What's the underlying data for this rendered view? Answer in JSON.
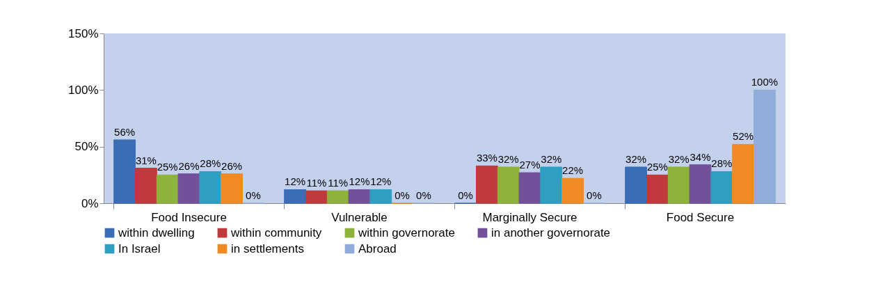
{
  "chart_data": {
    "type": "bar",
    "categories": [
      "Food Insecure",
      "Vulnerable",
      "Marginally Secure",
      "Food Secure"
    ],
    "series": [
      {
        "name": "within dwelling",
        "color": "#3a6db5",
        "values": [
          56,
          12,
          0,
          32
        ],
        "value_labels": [
          "56%",
          "12%",
          "0%",
          "32%"
        ]
      },
      {
        "name": "within community",
        "color": "#c0393b",
        "values": [
          31,
          11,
          33,
          25
        ],
        "value_labels": [
          "31%",
          "11%",
          "33%",
          "25%"
        ]
      },
      {
        "name": "within governorate",
        "color": "#8db33a",
        "values": [
          25,
          11,
          32,
          32
        ],
        "value_labels": [
          "25%",
          "11%",
          "32%",
          "32%"
        ]
      },
      {
        "name": "in another governorate",
        "color": "#72509a",
        "values": [
          26,
          12,
          27,
          34
        ],
        "value_labels": [
          "26%",
          "12%",
          "27%",
          "34%"
        ]
      },
      {
        "name": "In Israel",
        "color": "#2e9fc0",
        "values": [
          28,
          12,
          32,
          28
        ],
        "value_labels": [
          "28%",
          "12%",
          "32%",
          "28%"
        ]
      },
      {
        "name": "in settlements",
        "color": "#f08a24",
        "values": [
          26,
          0,
          22,
          52
        ],
        "value_labels": [
          "26%",
          "0%",
          "22%",
          "52%"
        ]
      },
      {
        "name": "Abroad",
        "color": "#8fadd8",
        "values": [
          0,
          0,
          0,
          100
        ],
        "value_labels": [
          "0%",
          "0%",
          "0%",
          "100%"
        ]
      }
    ],
    "ylim": [
      0,
      150
    ],
    "yticks": [
      {
        "value": 0,
        "label": "0%"
      },
      {
        "value": 50,
        "label": "50%"
      },
      {
        "value": 100,
        "label": "100%"
      },
      {
        "value": 150,
        "label": "150%"
      }
    ],
    "grid": false,
    "legend": "bottom"
  }
}
